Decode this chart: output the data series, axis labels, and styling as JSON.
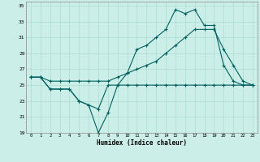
{
  "xlabel": "Humidex (Indice chaleur)",
  "background_color": "#cceee8",
  "grid_color": "#aaddcc",
  "line_color": "#006060",
  "xlim": [
    -0.5,
    23.5
  ],
  "ylim": [
    19,
    35.5
  ],
  "xticks": [
    0,
    1,
    2,
    3,
    4,
    5,
    6,
    7,
    8,
    9,
    10,
    11,
    12,
    13,
    14,
    15,
    16,
    17,
    18,
    19,
    20,
    21,
    22,
    23
  ],
  "yticks": [
    19,
    21,
    23,
    25,
    27,
    29,
    31,
    33,
    35
  ],
  "line1_x": [
    0,
    1,
    2,
    3,
    4,
    5,
    6,
    7,
    8,
    9,
    10,
    11,
    12,
    13,
    14,
    15,
    16,
    17,
    18,
    19,
    20,
    21,
    22,
    23
  ],
  "line1_y": [
    26,
    26,
    24.5,
    24.5,
    24.5,
    23,
    22.5,
    19,
    21.5,
    25,
    25,
    25,
    25,
    25,
    25,
    25,
    25,
    25,
    25,
    25,
    25,
    25,
    25,
    25
  ],
  "line2_x": [
    0,
    1,
    2,
    3,
    4,
    5,
    6,
    7,
    8,
    9,
    10,
    11,
    12,
    13,
    14,
    15,
    16,
    17,
    18,
    19,
    20,
    21,
    22,
    23
  ],
  "line2_y": [
    26,
    26,
    24.5,
    24.5,
    24.5,
    23,
    22.5,
    22,
    25,
    25,
    26.5,
    29.5,
    30,
    31,
    32,
    34.5,
    34,
    34.5,
    32.5,
    32.5,
    27.5,
    25.5,
    25,
    25
  ],
  "line3_x": [
    0,
    1,
    2,
    3,
    4,
    5,
    6,
    7,
    8,
    9,
    10,
    11,
    12,
    13,
    14,
    15,
    16,
    17,
    18,
    19,
    20,
    21,
    22,
    23
  ],
  "line3_y": [
    26,
    26,
    25.5,
    25.5,
    25.5,
    25.5,
    25.5,
    25.5,
    25.5,
    26,
    26.5,
    27,
    27.5,
    28,
    29,
    30,
    31,
    32,
    32,
    32,
    29.5,
    27.5,
    25.5,
    25
  ]
}
